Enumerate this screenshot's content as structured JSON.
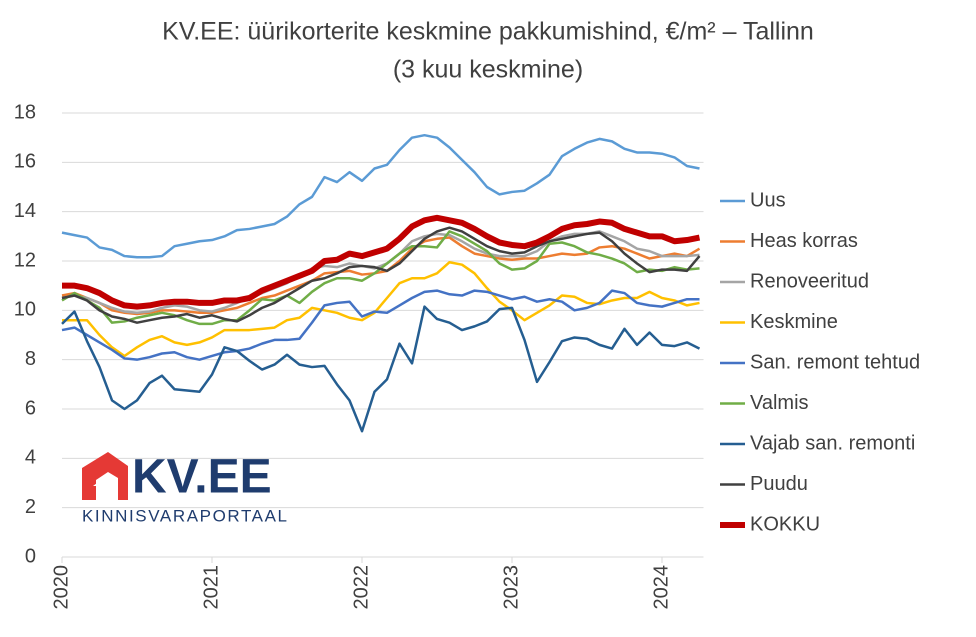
{
  "chart_data": {
    "type": "line",
    "title": "KV.EE: üürikorterite keskmine pakkumishind, €/m² – Tallinn",
    "subtitle": "(3 kuu keskmine)",
    "logo": {
      "brand": "KV.EE",
      "tagline": "KINNISVARAPORTAAL"
    },
    "categories": [
      "2020",
      null,
      null,
      null,
      null,
      null,
      null,
      null,
      null,
      null,
      null,
      null,
      "2021",
      null,
      null,
      null,
      null,
      null,
      null,
      null,
      null,
      null,
      null,
      null,
      "2022",
      null,
      null,
      null,
      null,
      null,
      null,
      null,
      null,
      null,
      null,
      null,
      "2023",
      null,
      null,
      null,
      null,
      null,
      null,
      null,
      null,
      null,
      null,
      null,
      "2024",
      null,
      null,
      null
    ],
    "ylim": [
      0,
      18
    ],
    "yticks": [
      0,
      2,
      4,
      6,
      8,
      10,
      12,
      14,
      16,
      18
    ],
    "grid": true,
    "legend": "right",
    "series": [
      {
        "name": "Uus",
        "color": "#5b9bd5",
        "values": [
          13.15,
          13.05,
          12.95,
          12.55,
          12.45,
          12.2,
          12.15,
          12.15,
          12.2,
          12.6,
          12.7,
          12.8,
          12.85,
          13.0,
          13.25,
          13.3,
          13.4,
          13.5,
          13.8,
          14.3,
          14.6,
          15.4,
          15.2,
          15.6,
          15.25,
          15.75,
          15.9,
          16.5,
          17.0,
          17.1,
          17.0,
          16.6,
          16.1,
          15.6,
          15.0,
          14.7,
          14.8,
          14.85,
          15.15,
          15.5,
          16.25,
          16.55,
          16.8,
          16.95,
          16.85,
          16.55,
          16.4,
          16.4,
          16.35,
          16.2,
          15.85,
          15.75
        ]
      },
      {
        "name": "Heas korras",
        "color": "#ed7d31",
        "values": [
          10.6,
          10.7,
          10.5,
          10.3,
          10.0,
          9.9,
          9.85,
          9.9,
          10.0,
          10.0,
          9.95,
          9.9,
          9.9,
          10.0,
          10.1,
          10.3,
          10.5,
          10.6,
          10.8,
          11.0,
          11.2,
          11.5,
          11.55,
          11.6,
          11.45,
          11.5,
          11.6,
          12.0,
          12.5,
          12.8,
          12.9,
          12.95,
          12.6,
          12.3,
          12.2,
          12.1,
          12.05,
          12.1,
          12.1,
          12.2,
          12.3,
          12.25,
          12.3,
          12.55,
          12.6,
          12.5,
          12.3,
          12.1,
          12.2,
          12.3,
          12.2,
          12.5
        ]
      },
      {
        "name": "Renoveeritud",
        "color": "#a5a5a5",
        "values": [
          10.5,
          10.6,
          10.5,
          10.3,
          10.1,
          9.95,
          9.9,
          9.95,
          10.1,
          10.2,
          10.15,
          10.0,
          9.95,
          10.1,
          10.3,
          10.5,
          10.7,
          10.9,
          11.1,
          11.4,
          11.7,
          11.8,
          11.75,
          11.9,
          11.8,
          11.7,
          11.9,
          12.3,
          12.8,
          13.0,
          13.1,
          13.05,
          12.8,
          12.5,
          12.3,
          12.2,
          12.2,
          12.2,
          12.4,
          12.8,
          13.0,
          13.1,
          13.1,
          13.2,
          13.0,
          12.8,
          12.5,
          12.4,
          12.2,
          12.2,
          12.2,
          12.25
        ]
      },
      {
        "name": "Keskmine",
        "color": "#ffc000",
        "values": [
          9.6,
          9.6,
          9.6,
          9.0,
          8.5,
          8.15,
          8.5,
          8.8,
          8.95,
          8.7,
          8.6,
          8.7,
          8.9,
          9.2,
          9.2,
          9.2,
          9.25,
          9.3,
          9.6,
          9.7,
          10.1,
          10.0,
          9.9,
          9.7,
          9.6,
          9.9,
          10.5,
          11.1,
          11.3,
          11.3,
          11.5,
          11.95,
          11.85,
          11.5,
          10.9,
          10.35,
          10.0,
          9.6,
          9.9,
          10.2,
          10.6,
          10.55,
          10.3,
          10.25,
          10.4,
          10.5,
          10.5,
          10.75,
          10.5,
          10.4,
          10.2,
          10.3
        ]
      },
      {
        "name": "San. remont tehtud",
        "color": "#4472c4",
        "values": [
          9.2,
          9.3,
          9.0,
          8.7,
          8.4,
          8.05,
          8.0,
          8.1,
          8.25,
          8.3,
          8.1,
          8.0,
          8.15,
          8.3,
          8.35,
          8.45,
          8.65,
          8.8,
          8.8,
          8.85,
          9.5,
          10.2,
          10.3,
          10.35,
          9.75,
          9.95,
          9.9,
          10.2,
          10.5,
          10.75,
          10.8,
          10.65,
          10.6,
          10.8,
          10.75,
          10.6,
          10.45,
          10.55,
          10.35,
          10.45,
          10.35,
          10.0,
          10.1,
          10.3,
          10.8,
          10.7,
          10.3,
          10.2,
          10.15,
          10.3,
          10.45,
          10.45
        ]
      },
      {
        "name": "Valmis",
        "color": "#70ad47",
        "values": [
          10.4,
          10.7,
          10.4,
          10.1,
          9.5,
          9.55,
          9.7,
          9.8,
          9.9,
          9.8,
          9.6,
          9.45,
          9.45,
          9.6,
          9.6,
          10.0,
          10.45,
          10.4,
          10.6,
          10.3,
          10.75,
          11.1,
          11.3,
          11.3,
          11.2,
          11.5,
          11.9,
          12.3,
          12.6,
          12.6,
          12.55,
          13.2,
          13.0,
          12.7,
          12.4,
          11.9,
          11.65,
          11.7,
          12.0,
          12.7,
          12.75,
          12.6,
          12.35,
          12.25,
          12.1,
          11.9,
          11.55,
          11.65,
          11.6,
          11.75,
          11.65,
          11.7
        ]
      },
      {
        "name": "Vajab san. remonti",
        "color": "#255e91",
        "values": [
          9.45,
          9.95,
          8.75,
          7.7,
          6.35,
          6.0,
          6.35,
          7.05,
          7.35,
          6.8,
          6.75,
          6.7,
          7.4,
          8.5,
          8.35,
          7.95,
          7.6,
          7.8,
          8.2,
          7.8,
          7.7,
          7.75,
          7.0,
          6.35,
          5.1,
          6.7,
          7.2,
          8.65,
          7.85,
          10.15,
          9.65,
          9.5,
          9.2,
          9.35,
          9.55,
          10.05,
          10.1,
          8.8,
          7.1,
          7.9,
          8.75,
          8.9,
          8.85,
          8.6,
          8.45,
          9.25,
          8.6,
          9.1,
          8.6,
          8.55,
          8.7,
          8.45
        ]
      },
      {
        "name": "Puudu",
        "color": "#404040",
        "values": [
          10.5,
          10.6,
          10.4,
          10.0,
          9.75,
          9.65,
          9.5,
          9.6,
          9.7,
          9.75,
          9.85,
          9.7,
          9.8,
          9.65,
          9.55,
          9.8,
          10.1,
          10.3,
          10.6,
          10.9,
          11.2,
          11.3,
          11.5,
          11.75,
          11.8,
          11.75,
          11.6,
          11.9,
          12.4,
          12.9,
          13.2,
          13.35,
          13.2,
          12.9,
          12.6,
          12.4,
          12.3,
          12.35,
          12.6,
          12.8,
          12.9,
          13.0,
          13.1,
          13.15,
          12.8,
          12.3,
          11.9,
          11.55,
          11.65,
          11.65,
          11.6,
          12.2
        ]
      },
      {
        "name": "KOKKU",
        "color": "#c00000",
        "values": [
          11.0,
          11.0,
          10.9,
          10.7,
          10.4,
          10.2,
          10.15,
          10.2,
          10.3,
          10.35,
          10.35,
          10.3,
          10.3,
          10.4,
          10.4,
          10.5,
          10.8,
          11.0,
          11.2,
          11.4,
          11.6,
          12.0,
          12.05,
          12.3,
          12.2,
          12.35,
          12.5,
          12.9,
          13.4,
          13.65,
          13.75,
          13.65,
          13.55,
          13.3,
          13.0,
          12.75,
          12.65,
          12.6,
          12.75,
          13.0,
          13.3,
          13.45,
          13.5,
          13.6,
          13.55,
          13.3,
          13.15,
          13.0,
          13.0,
          12.8,
          12.85,
          12.95
        ]
      }
    ]
  }
}
